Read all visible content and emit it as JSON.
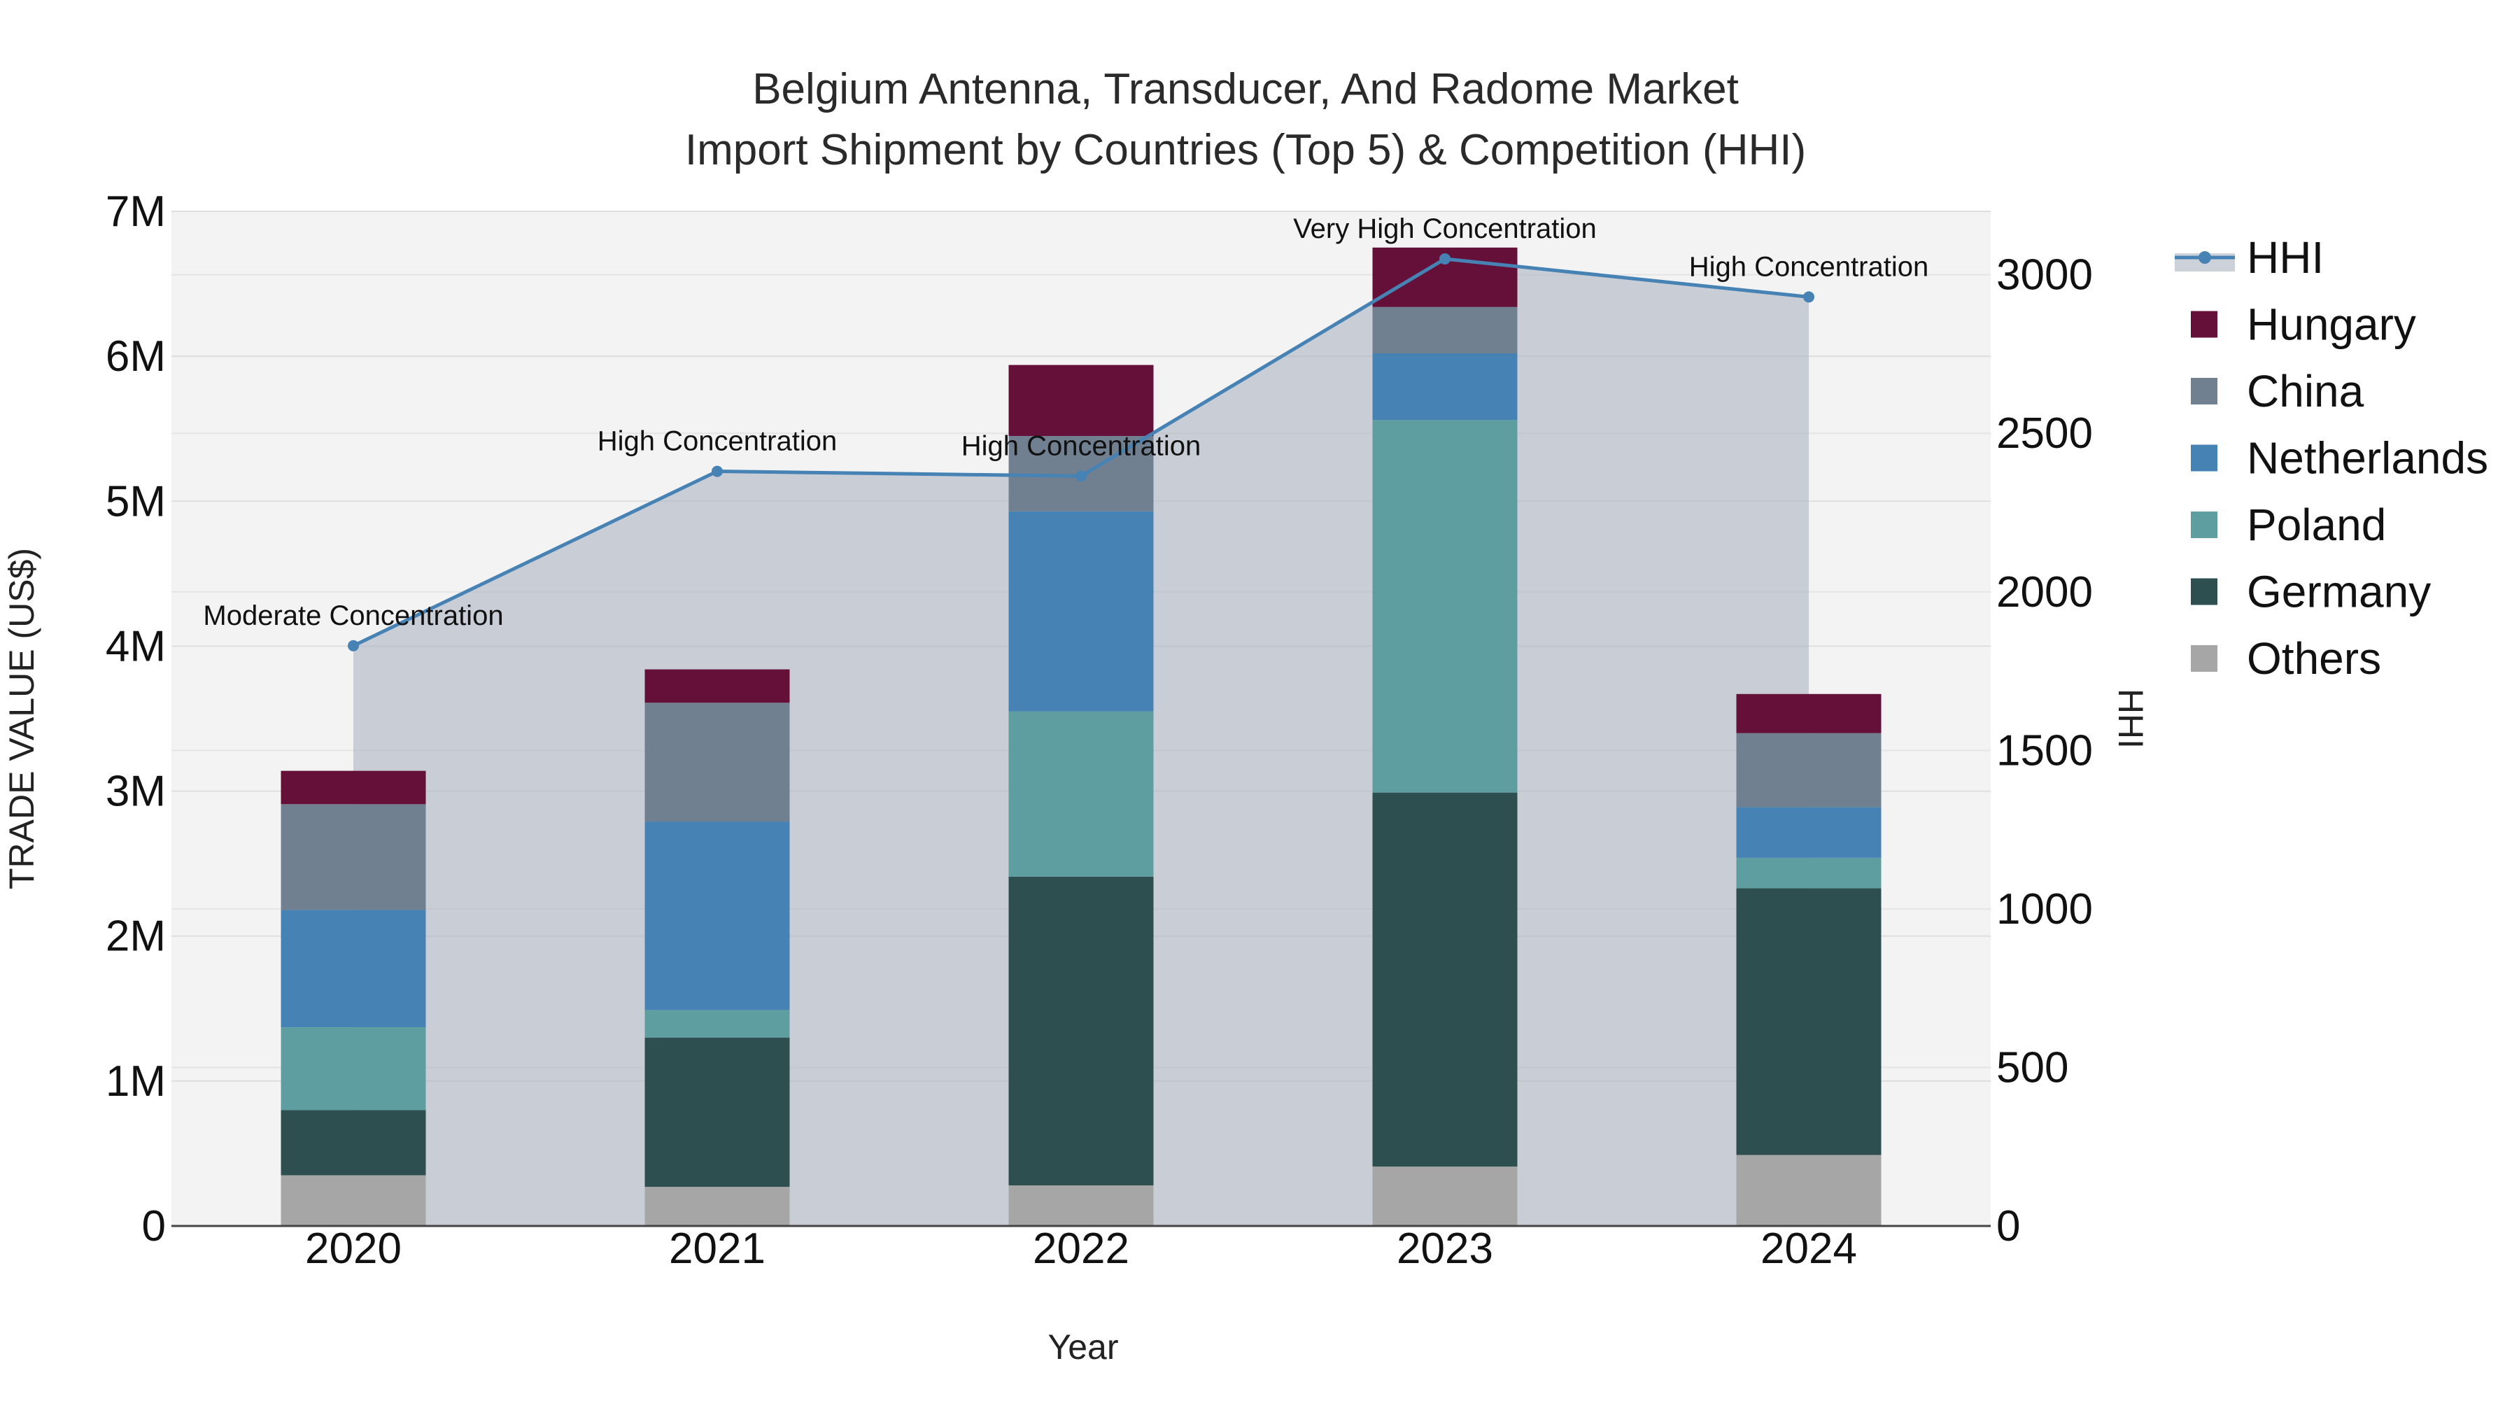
{
  "chart_data": {
    "type": "bar",
    "title_lines": [
      "Belgium Antenna, Transducer, And Radome Market",
      "Import Shipment by Countries (Top 5) & Competition (HHI)"
    ],
    "xlabel": "Year",
    "ylabel": "TRADE VALUE (US$)",
    "y2label": "HHI",
    "categories": [
      "2020",
      "2021",
      "2022",
      "2023",
      "2024"
    ],
    "ylim": [
      0,
      7000000
    ],
    "y_ticks": [
      0,
      1000000,
      2000000,
      3000000,
      4000000,
      5000000,
      6000000,
      7000000
    ],
    "y_tick_labels": [
      "0",
      "1M",
      "2M",
      "3M",
      "4M",
      "5M",
      "6M",
      "7M"
    ],
    "y2lim": [
      0,
      3200
    ],
    "y2_ticks": [
      0,
      500,
      1000,
      1500,
      2000,
      2500,
      3000
    ],
    "y2_tick_labels": [
      "0",
      "500",
      "1000",
      "1500",
      "2000",
      "2500",
      "3000"
    ],
    "series": [
      {
        "name": "Others",
        "color": "#a6a6a6",
        "values": [
          350000,
          270000,
          280000,
          410000,
          490000
        ]
      },
      {
        "name": "Germany",
        "color": "#2e4f4f",
        "values": [
          450000,
          1030000,
          2130000,
          2580000,
          1840000
        ]
      },
      {
        "name": "Poland",
        "color": "#5f9ea0",
        "values": [
          570000,
          190000,
          1140000,
          2570000,
          210000
        ]
      },
      {
        "name": "Netherlands",
        "color": "#4682b4",
        "values": [
          810000,
          1300000,
          1380000,
          460000,
          350000
        ]
      },
      {
        "name": "China",
        "color": "#708090",
        "values": [
          730000,
          820000,
          520000,
          320000,
          510000
        ]
      },
      {
        "name": "Hungary",
        "color": "#641038",
        "values": [
          230000,
          230000,
          490000,
          410000,
          270000
        ]
      }
    ],
    "hhi": {
      "name": "HHI",
      "color": "#4682b4",
      "values": [
        1830,
        2380,
        2365,
        3050,
        2930
      ],
      "labels": [
        "Moderate Concentration",
        "High Concentration",
        "High Concentration",
        "Very High Concentration",
        "High Concentration"
      ]
    },
    "legend_order": [
      "HHI",
      "Hungary",
      "China",
      "Netherlands",
      "Poland",
      "Germany",
      "Others"
    ],
    "legend_position": "top-right"
  }
}
